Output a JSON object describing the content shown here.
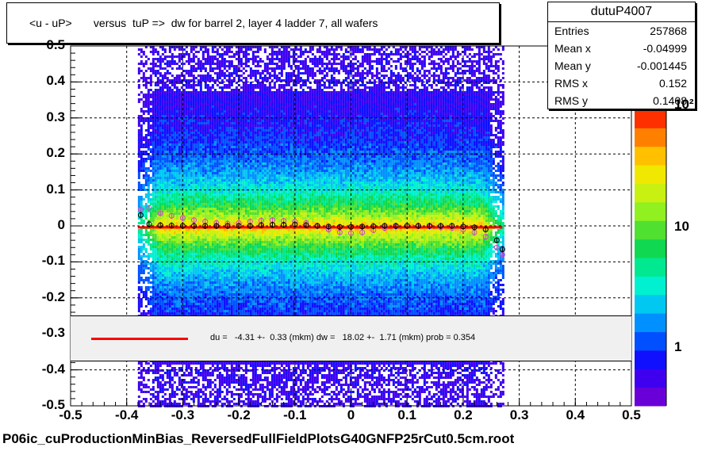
{
  "title": "<u - uP>       versus  tuP =>  dw for barrel 2, layer 4 ladder 7, all wafers",
  "stats": {
    "name": "dutuP4007",
    "rows": [
      {
        "key": "Entries",
        "value": "257868"
      },
      {
        "key": "Mean x",
        "value": "-0.04999"
      },
      {
        "key": "Mean y",
        "value": "-0.001445"
      },
      {
        "key": "RMS x",
        "value": "0.152"
      },
      {
        "key": "RMS y",
        "value": "0.1408"
      }
    ]
  },
  "fit_text": "du =   -4.31 +-  0.33 (mkm) dw =   18.02 +-  1.71 (mkm) prob = 0.354",
  "footer": "P06ic_cuProductionMinBias_ReversedFullFieldPlotsG40GNFP25rCut0.5cm.root",
  "colors": {
    "fit_line": "#ff0000",
    "profile_black": "#000000",
    "profile_magenta": "#cc44cc",
    "palette": [
      "#6a00d8",
      "#4000f0",
      "#1010ff",
      "#0050ff",
      "#0090ff",
      "#00c8f0",
      "#00f0d0",
      "#00e890",
      "#10d850",
      "#50e030",
      "#90f020",
      "#c8f010",
      "#f0e800",
      "#ffc000",
      "#ff8000",
      "#ff3000"
    ]
  },
  "chart_data": {
    "type": "heatmap",
    "xlim": [
      -0.5,
      0.5
    ],
    "ylim": [
      -0.5,
      0.5
    ],
    "x_ticks": [
      "-0.5",
      "-0.4",
      "-0.3",
      "-0.2",
      "-0.1",
      "0",
      "0.1",
      "0.2",
      "0.3",
      "0.4",
      "0.5"
    ],
    "y_ticks": [
      "-0.5",
      "-0.4",
      "-0.3",
      "-0.2",
      "-0.1",
      "0",
      "0.1",
      "0.2",
      "0.3",
      "0.4",
      "0.5"
    ],
    "z_scale": "log",
    "z_ticks": [
      "1",
      "10",
      "10²"
    ],
    "grid": true,
    "data_x_range": [
      -0.38,
      0.27
    ],
    "fit": {
      "type": "line",
      "y": -0.004
    },
    "profile_black": {
      "x": [
        -0.375,
        -0.36,
        -0.34,
        -0.32,
        -0.3,
        -0.28,
        -0.26,
        -0.24,
        -0.22,
        -0.2,
        -0.18,
        -0.16,
        -0.14,
        -0.12,
        -0.1,
        -0.08,
        -0.06,
        -0.04,
        -0.02,
        0,
        0.02,
        0.04,
        0.06,
        0.08,
        0.1,
        0.12,
        0.14,
        0.16,
        0.18,
        0.2,
        0.22,
        0.24,
        0.26,
        0.27
      ],
      "y": [
        0.03,
        0.005,
        0.002,
        0.001,
        0,
        0,
        0,
        0,
        0,
        0,
        0,
        0.002,
        0.003,
        0.003,
        0.004,
        0.002,
        0,
        -0.002,
        -0.003,
        -0.003,
        -0.002,
        -0.001,
        0,
        0,
        0,
        0,
        0,
        0,
        0,
        -0.002,
        -0.004,
        -0.01,
        -0.04,
        -0.065
      ]
    },
    "profile_magenta": {
      "x": [
        -0.375,
        -0.36,
        -0.34,
        -0.32,
        -0.3,
        -0.28,
        -0.26,
        -0.24,
        -0.22,
        -0.2,
        -0.18,
        -0.16,
        -0.14,
        -0.12,
        -0.1,
        -0.08,
        -0.06,
        -0.04,
        -0.02,
        0,
        0.02,
        0.04,
        0.06,
        0.08,
        0.1,
        0.12,
        0.14,
        0.16,
        0.18,
        0.2,
        0.22,
        0.24,
        0.26,
        0.27
      ],
      "y": [
        0.045,
        0.05,
        0.035,
        0.028,
        0.022,
        0.016,
        0.012,
        0.008,
        0.006,
        0.008,
        0.012,
        0.015,
        0.016,
        0.014,
        0.012,
        0.008,
        0,
        -0.01,
        -0.018,
        -0.02,
        -0.018,
        -0.012,
        -0.006,
        -0.002,
        0,
        0,
        -0.002,
        -0.004,
        -0.006,
        -0.01,
        -0.018,
        -0.03,
        -0.06,
        -0.08
      ]
    }
  }
}
